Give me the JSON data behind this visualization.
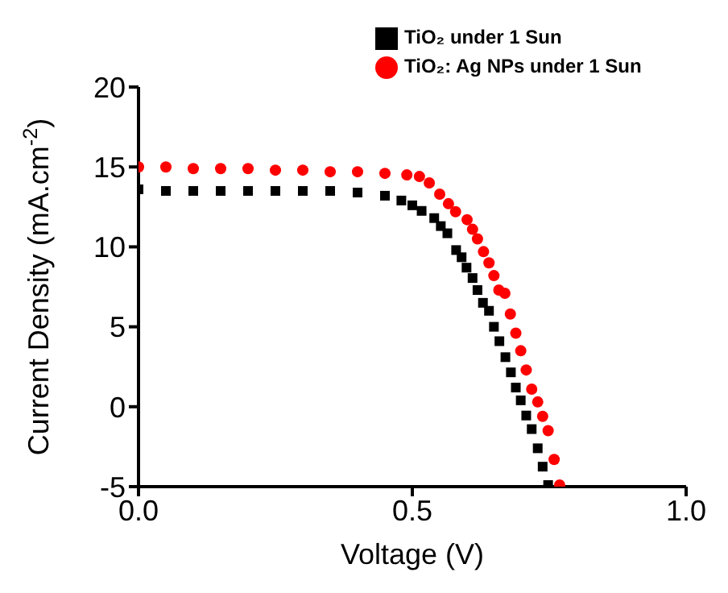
{
  "chart_data": {
    "type": "scatter",
    "xlabel": "Voltage (V)",
    "ylabel": "Current Density (mA.cm$^{-2}$)",
    "xlim": [
      0,
      1.0
    ],
    "xticks": [
      {
        "value": 0,
        "label": "0.0"
      },
      0.5,
      {
        "value": 1,
        "label": "1.0"
      }
    ],
    "ylim": [
      -5,
      20
    ],
    "yticks": [
      -5,
      0,
      5,
      10,
      15,
      20
    ],
    "grid": false,
    "legend": "top right",
    "series": [
      {
        "name": "TiO₂ under 1 Sun",
        "color": "#000000",
        "marker": "square",
        "x": [
          0,
          0.05,
          0.1,
          0.15,
          0.2,
          0.25,
          0.3,
          0.35,
          0.4,
          0.45,
          0.48,
          0.5,
          0.517,
          0.54,
          0.552,
          0.564,
          0.58,
          0.59,
          0.599,
          0.61,
          0.619,
          0.629,
          0.64,
          0.649,
          0.659,
          0.67,
          0.68,
          0.689,
          0.698,
          0.708,
          0.718,
          0.729,
          0.738,
          0.748
        ],
        "values": [
          13.6,
          13.5,
          13.5,
          13.5,
          13.5,
          13.5,
          13.5,
          13.5,
          13.4,
          13.2,
          12.9,
          12.6,
          12.25,
          11.8,
          11.3,
          10.85,
          9.8,
          9.35,
          8.7,
          8.05,
          7.3,
          6.5,
          6.0,
          5.0,
          4.1,
          3.1,
          2.15,
          1.2,
          0.4,
          -0.55,
          -1.4,
          -2.6,
          -3.75,
          -4.9
        ]
      },
      {
        "name": "TiO₂: Ag NPs under 1 Sun",
        "color": "#ff0000",
        "marker": "circle",
        "x": [
          0,
          0.05,
          0.1,
          0.15,
          0.2,
          0.25,
          0.3,
          0.35,
          0.4,
          0.45,
          0.49,
          0.513,
          0.531,
          0.55,
          0.566,
          0.579,
          0.6,
          0.61,
          0.619,
          0.63,
          0.64,
          0.649,
          0.658,
          0.669,
          0.679,
          0.689,
          0.698,
          0.708,
          0.718,
          0.729,
          0.738,
          0.748,
          0.759,
          0.769
        ],
        "values": [
          15.0,
          15.0,
          14.9,
          14.9,
          14.9,
          14.8,
          14.8,
          14.7,
          14.7,
          14.6,
          14.5,
          14.4,
          14.0,
          13.3,
          12.7,
          12.2,
          11.7,
          11.1,
          10.5,
          9.7,
          9.0,
          8.2,
          7.3,
          7.1,
          5.8,
          4.6,
          3.5,
          2.3,
          1.1,
          0.3,
          -0.6,
          -1.5,
          -3.3,
          -4.9
        ]
      }
    ]
  }
}
